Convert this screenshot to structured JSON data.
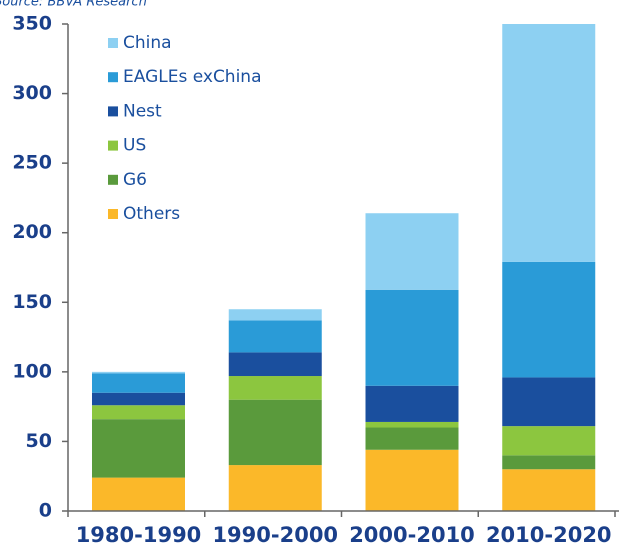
{
  "chart_data": {
    "type": "stacked_bar",
    "source": "Source: BBVA Research",
    "categories": [
      "1980-1990",
      "1990-2000",
      "2000-2010",
      "2010-2020"
    ],
    "series": [
      {
        "name": "China",
        "color": "#8dd0f2",
        "values": [
          1,
          8,
          55,
          171
        ]
      },
      {
        "name": "EAGLEs exChina",
        "color": "#2a9bd7",
        "values": [
          14,
          23,
          69,
          83
        ]
      },
      {
        "name": "Nest",
        "color": "#1a4f9e",
        "values": [
          9,
          17,
          26,
          35
        ]
      },
      {
        "name": "US",
        "color": "#8cc63f",
        "values": [
          10,
          17,
          4,
          21
        ]
      },
      {
        "name": "G6",
        "color": "#5a9a3c",
        "values": [
          42,
          47,
          16,
          10
        ]
      },
      {
        "name": "Others",
        "color": "#fbb829",
        "values": [
          24,
          33,
          44,
          30
        ]
      }
    ],
    "ylim": [
      0,
      350
    ],
    "yticks": [
      0,
      50,
      100,
      150,
      200,
      250,
      300,
      350
    ],
    "legend": "upper left"
  }
}
